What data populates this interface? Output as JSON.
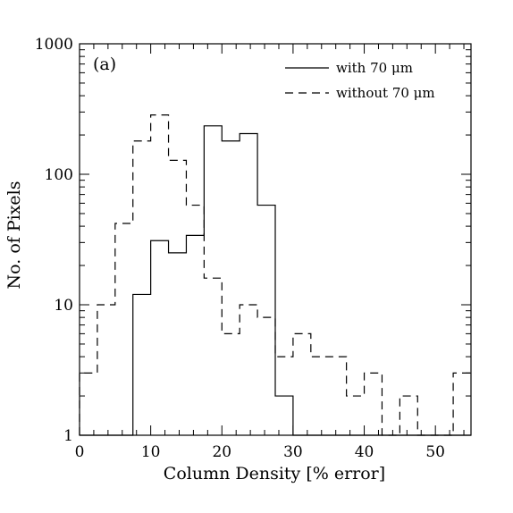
{
  "chart_data": {
    "type": "histogram",
    "panel_label": "(a)",
    "xlabel": "Column Density [% error]",
    "ylabel": "No. of Pixels",
    "xlim": [
      0,
      55
    ],
    "ylim": [
      1,
      1000
    ],
    "yscale": "log",
    "x_ticks": [
      0,
      10,
      20,
      30,
      40,
      50
    ],
    "x_tick_labels": [
      "0",
      "10",
      "20",
      "30",
      "40",
      "50"
    ],
    "y_ticks": [
      1,
      10,
      100,
      1000
    ],
    "y_tick_labels": [
      "1",
      "10",
      "100",
      "1000"
    ],
    "bin_edges": [
      0,
      2.5,
      5,
      7.5,
      10,
      12.5,
      15,
      17.5,
      20,
      22.5,
      25,
      27.5,
      30,
      32.5,
      35,
      37.5,
      40,
      42.5,
      45,
      47.5,
      50,
      52.5,
      55
    ],
    "series": [
      {
        "name": "with 70 μm",
        "line_style": "solid",
        "color": "#000000",
        "values": [
          0,
          0,
          0,
          12,
          31,
          25,
          34,
          235,
          180,
          205,
          58,
          2,
          0,
          0,
          0,
          0,
          0,
          0,
          0,
          0,
          0,
          0
        ]
      },
      {
        "name": "without 70 μm",
        "line_style": "dashed",
        "color": "#000000",
        "values": [
          3,
          10,
          42,
          180,
          285,
          128,
          58,
          16,
          6,
          10,
          8,
          4,
          6,
          4,
          4,
          2,
          3,
          0,
          2,
          0,
          0,
          3
        ]
      }
    ],
    "legend_position": "top-right",
    "grid": false
  }
}
